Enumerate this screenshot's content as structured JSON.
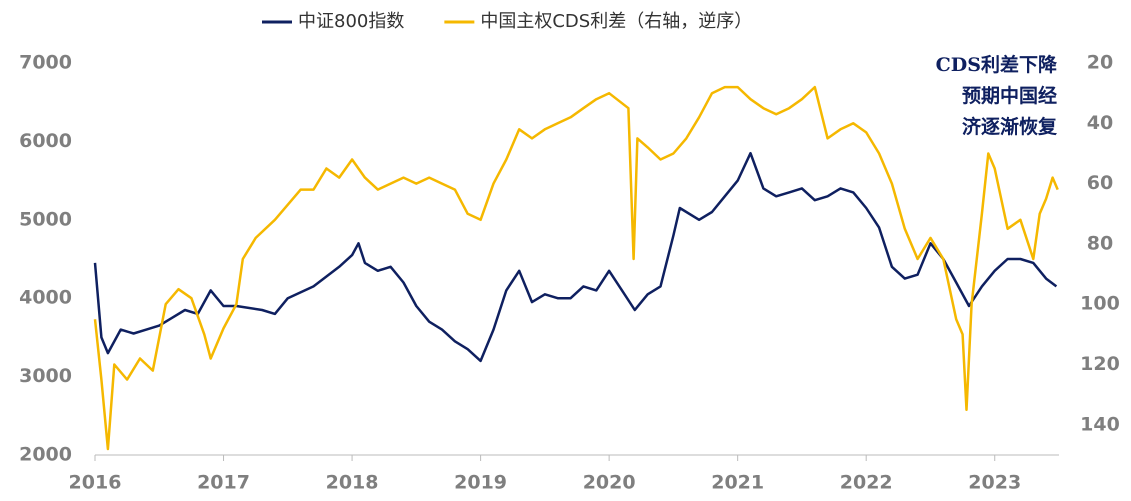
{
  "chart_data": {
    "type": "line",
    "xlim": [
      2016,
      2023.5
    ],
    "xticks": [
      2016,
      2017,
      2018,
      2019,
      2020,
      2021,
      2022,
      2023
    ],
    "ylim": [
      2000,
      7000
    ],
    "yticks": [
      2000,
      3000,
      4000,
      5000,
      6000,
      7000
    ],
    "y2lim": [
      150,
      20
    ],
    "y2ticks": [
      20,
      40,
      60,
      80,
      100,
      120,
      140
    ],
    "legend": "top",
    "annotation": [
      "CDS利差下降",
      "预期中国经",
      "济逐渐恢复"
    ],
    "series": [
      {
        "name": "中证800指数",
        "color": "#0f2060",
        "x": [
          2016.0,
          2016.05,
          2016.1,
          2016.2,
          2016.3,
          2016.4,
          2016.5,
          2016.6,
          2016.7,
          2016.8,
          2016.9,
          2017.0,
          2017.1,
          2017.3,
          2017.4,
          2017.5,
          2017.7,
          2017.9,
          2018.0,
          2018.05,
          2018.1,
          2018.2,
          2018.3,
          2018.4,
          2018.5,
          2018.6,
          2018.7,
          2018.8,
          2018.9,
          2019.0,
          2019.1,
          2019.2,
          2019.3,
          2019.4,
          2019.5,
          2019.6,
          2019.7,
          2019.8,
          2019.9,
          2020.0,
          2020.1,
          2020.2,
          2020.3,
          2020.4,
          2020.5,
          2020.55,
          2020.7,
          2020.8,
          2020.9,
          2021.0,
          2021.1,
          2021.2,
          2021.3,
          2021.4,
          2021.5,
          2021.6,
          2021.7,
          2021.8,
          2021.9,
          2022.0,
          2022.1,
          2022.2,
          2022.3,
          2022.4,
          2022.5,
          2022.6,
          2022.7,
          2022.8,
          2022.9,
          2023.0,
          2023.1,
          2023.2,
          2023.3,
          2023.4,
          2023.48
        ],
        "values": [
          4450,
          3500,
          3300,
          3600,
          3550,
          3600,
          3650,
          3750,
          3850,
          3800,
          4100,
          3900,
          3900,
          3850,
          3800,
          4000,
          4150,
          4400,
          4550,
          4700,
          4450,
          4350,
          4400,
          4200,
          3900,
          3700,
          3600,
          3450,
          3350,
          3200,
          3600,
          4100,
          4350,
          3950,
          4050,
          4000,
          4000,
          4150,
          4100,
          4350,
          4100,
          3850,
          4050,
          4150,
          4800,
          5150,
          5000,
          5100,
          5300,
          5500,
          5850,
          5400,
          5300,
          5350,
          5400,
          5250,
          5300,
          5400,
          5350,
          5150,
          4900,
          4400,
          4250,
          4300,
          4700,
          4500,
          4200,
          3900,
          4150,
          4350,
          4500,
          4500,
          4450,
          4250,
          4150
        ]
      },
      {
        "name": "中国主权CDS利差（右轴，逆序）",
        "color": "#f5b800",
        "axis": "y2",
        "x": [
          2016.0,
          2016.05,
          2016.1,
          2016.15,
          2016.25,
          2016.35,
          2016.45,
          2016.55,
          2016.65,
          2016.75,
          2016.85,
          2016.9,
          2017.0,
          2017.1,
          2017.15,
          2017.25,
          2017.4,
          2017.5,
          2017.6,
          2017.7,
          2017.8,
          2017.9,
          2018.0,
          2018.1,
          2018.2,
          2018.3,
          2018.4,
          2018.5,
          2018.6,
          2018.7,
          2018.8,
          2018.9,
          2019.0,
          2019.1,
          2019.2,
          2019.3,
          2019.4,
          2019.5,
          2019.6,
          2019.7,
          2019.8,
          2019.9,
          2020.0,
          2020.15,
          2020.19,
          2020.22,
          2020.3,
          2020.4,
          2020.5,
          2020.6,
          2020.7,
          2020.8,
          2020.9,
          2021.0,
          2021.1,
          2021.2,
          2021.3,
          2021.4,
          2021.5,
          2021.6,
          2021.7,
          2021.8,
          2021.9,
          2022.0,
          2022.1,
          2022.2,
          2022.3,
          2022.4,
          2022.5,
          2022.6,
          2022.7,
          2022.75,
          2022.78,
          2022.82,
          2022.9,
          2022.95,
          2023.0,
          2023.1,
          2023.2,
          2023.3,
          2023.35,
          2023.4,
          2023.45,
          2023.49
        ],
        "values": [
          105,
          125,
          148,
          120,
          125,
          118,
          122,
          100,
          95,
          98,
          110,
          118,
          108,
          100,
          85,
          78,
          72,
          67,
          62,
          62,
          55,
          58,
          52,
          58,
          62,
          60,
          58,
          60,
          58,
          60,
          62,
          70,
          72,
          60,
          52,
          42,
          45,
          42,
          40,
          38,
          35,
          32,
          30,
          35,
          85,
          45,
          48,
          52,
          50,
          45,
          38,
          30,
          28,
          28,
          32,
          35,
          37,
          35,
          32,
          28,
          45,
          42,
          40,
          43,
          50,
          60,
          75,
          85,
          78,
          85,
          105,
          110,
          135,
          100,
          70,
          50,
          55,
          75,
          72,
          85,
          70,
          65,
          58,
          62
        ]
      }
    ]
  }
}
